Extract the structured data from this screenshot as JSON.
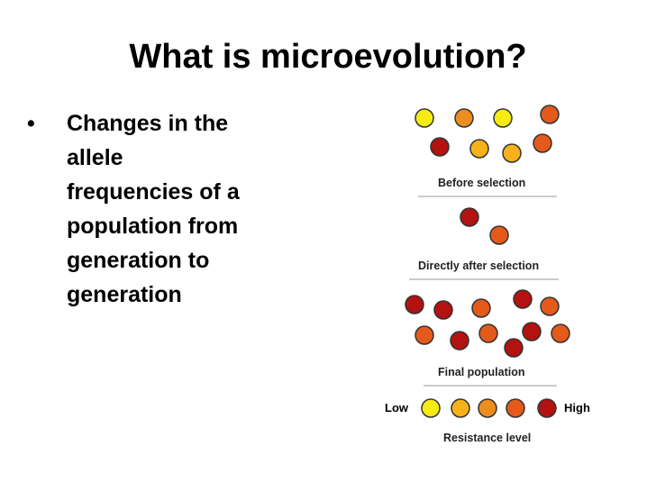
{
  "slide": {
    "title": "What is microevolution?",
    "bullet": "•",
    "bullet_lines": [
      "Changes in the",
      "allele",
      "frequencies of a",
      "population from",
      "generation to",
      "generation"
    ]
  },
  "figure": {
    "before_label": "Before selection",
    "after_label": "Directly after selection",
    "final_label": "Final population",
    "low_label": "Low",
    "high_label": "High",
    "scale_label": "Resistance level",
    "colors": {
      "yellow": "#f7ec11",
      "light_orange": "#f6b218",
      "orange": "#ec8d1e",
      "orange_red": "#e35a1b",
      "red": "#b41111"
    }
  }
}
